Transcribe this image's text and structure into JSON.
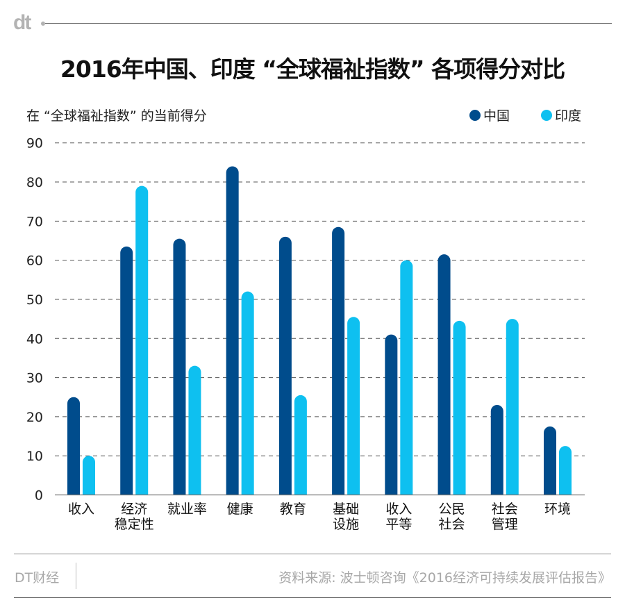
{
  "brand": {
    "logo_text": "dt",
    "footer_name": "DT财经"
  },
  "header": {
    "title": "2016年中国、印度 “全球福祉指数” 各项得分对比",
    "subtitle": "在 “全球福祉指数” 的当前得分"
  },
  "legend": [
    {
      "label": "中国",
      "color": "#004c8c"
    },
    {
      "label": "印度",
      "color": "#0ec0f0"
    }
  ],
  "footer": {
    "source": "资料来源: 波士顿咨询《2016经济可持续发展评估报告》"
  },
  "chart_data": {
    "type": "bar",
    "title": "2016年中国、印度 “全球福祉指数” 各项得分对比",
    "ylabel": "在 “全球福祉指数” 的当前得分",
    "xlabel": "",
    "ylim": [
      0,
      90
    ],
    "yticks": [
      0,
      10,
      20,
      30,
      40,
      50,
      60,
      70,
      80,
      90
    ],
    "grid": true,
    "legend_position": "top-right",
    "categories": [
      [
        "收入"
      ],
      [
        "经济",
        "稳定性"
      ],
      [
        "就业率"
      ],
      [
        "健康"
      ],
      [
        "教育"
      ],
      [
        "基础",
        "设施"
      ],
      [
        "收入",
        "平等"
      ],
      [
        "公民",
        "社会"
      ],
      [
        "社会",
        "管理"
      ],
      [
        "环境"
      ]
    ],
    "series": [
      {
        "name": "中国",
        "color": "#004c8c",
        "values": [
          25,
          63.5,
          65.5,
          84,
          66,
          68.5,
          41,
          61.5,
          23,
          17.5
        ]
      },
      {
        "name": "印度",
        "color": "#0ec0f0",
        "values": [
          10,
          79,
          33,
          52,
          25.5,
          45.5,
          60,
          44.5,
          45,
          12.5
        ]
      }
    ]
  }
}
